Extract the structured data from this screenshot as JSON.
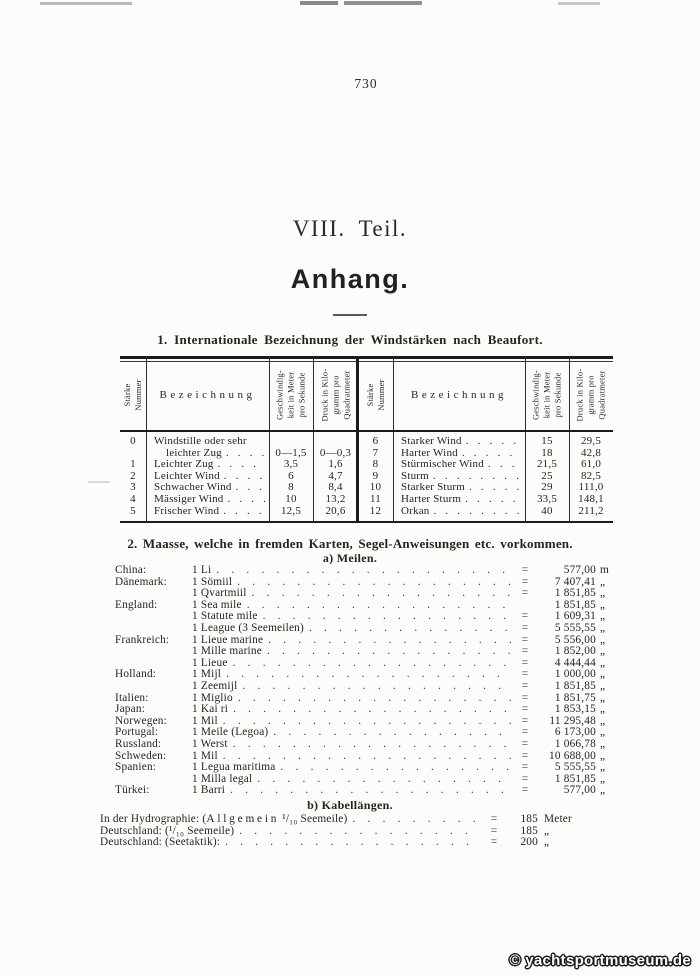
{
  "page": {
    "page_number": "730",
    "part_title": "VIII. Teil.",
    "chapter_title": "Anhang.",
    "watermark": "© yachtsportmuseum.de"
  },
  "wind_table": {
    "title": "1. Internationale Bezeichnung der Windstärken nach Beaufort.",
    "headers": {
      "staerke": "Stärke\nNummer",
      "bezeichnung": "Bezeichnung",
      "geschwindigkeit": "Geschwindig-\nkeit in Meter\npro Sekunde",
      "druck": "Druck in Kilo-\ngramm pro\nQuadratmeter"
    },
    "left_rows": [
      {
        "num": "0",
        "bez": "Windstille oder sehr",
        "dots": false,
        "indent": false,
        "geschw": "",
        "druck": ""
      },
      {
        "num": "",
        "bez": "leichter Zug",
        "dots": true,
        "indent": true,
        "geschw": "0—1,5",
        "druck": "0—0,3"
      },
      {
        "num": "1",
        "bez": "Leichter Zug",
        "dots": true,
        "indent": false,
        "geschw": "3,5",
        "druck": "1,6"
      },
      {
        "num": "2",
        "bez": "Leichter Wind",
        "dots": true,
        "indent": false,
        "geschw": "6",
        "druck": "4,7"
      },
      {
        "num": "3",
        "bez": "Schwacher Wind",
        "dots": true,
        "indent": false,
        "geschw": "8",
        "druck": "8,4"
      },
      {
        "num": "4",
        "bez": "Mässiger Wind",
        "dots": true,
        "indent": false,
        "geschw": "10",
        "druck": "13,2"
      },
      {
        "num": "5",
        "bez": "Frischer Wind",
        "dots": true,
        "indent": false,
        "geschw": "12,5",
        "druck": "20,6"
      }
    ],
    "right_rows": [
      {
        "num": "6",
        "bez": "Starker Wind",
        "geschw": "15",
        "druck": "29,5"
      },
      {
        "num": "7",
        "bez": "Harter Wind",
        "geschw": "18",
        "druck": "42,8"
      },
      {
        "num": "8",
        "bez": "Stürmischer Wind",
        "geschw": "21,5",
        "druck": "61,0"
      },
      {
        "num": "9",
        "bez": "Sturm",
        "geschw": "25",
        "druck": "82,5"
      },
      {
        "num": "10",
        "bez": "Starker Sturm",
        "geschw": "29",
        "druck": "111,0"
      },
      {
        "num": "11",
        "bez": "Harter Sturm",
        "geschw": "33,5",
        "druck": "148,1"
      },
      {
        "num": "12",
        "bez": "Orkan",
        "geschw": "40",
        "druck": "211,2"
      }
    ]
  },
  "measures": {
    "title": "2. Maasse, welche in fremden Karten, Segel-Anweisungen etc. vorkommen.",
    "miles": {
      "title": "a) Meilen.",
      "rows": [
        {
          "country": "China:",
          "measure": "1 Li",
          "eq": "=",
          "value": "577,00",
          "unit": "m"
        },
        {
          "country": "Dänemark:",
          "measure": "1 Sömiil",
          "eq": "=",
          "value": "7 407,41",
          "unit": "„"
        },
        {
          "country": "",
          "measure": "1 Qvartmiil",
          "eq": "=",
          "value": "1 851,85",
          "unit": "„"
        },
        {
          "country": "England:",
          "measure": "1 Sea mile",
          "eq": "",
          "value": "1 851,85",
          "unit": "„"
        },
        {
          "country": "",
          "measure": "1 Statute mile",
          "eq": "=",
          "value": "1 609,31",
          "unit": "„"
        },
        {
          "country": "",
          "measure": "1 League (3 Seemeilen)",
          "eq": "=",
          "value": "5 555,55",
          "unit": "„"
        },
        {
          "country": "Frankreich:",
          "measure": "1 Lieue marine",
          "eq": "=",
          "value": "5 556,00",
          "unit": "„"
        },
        {
          "country": "",
          "measure": "1 Mille marine",
          "eq": "=",
          "value": "1 852,00",
          "unit": "„"
        },
        {
          "country": "",
          "measure": "1 Lieue",
          "eq": "=",
          "value": "4 444,44",
          "unit": "„"
        },
        {
          "country": "Holland:",
          "measure": "1 Mijl",
          "eq": "=",
          "value": "1 000,00",
          "unit": "„"
        },
        {
          "country": "",
          "measure": "1 Zeemijl",
          "eq": "=",
          "value": "1 851,85",
          "unit": "„"
        },
        {
          "country": "Italien:",
          "measure": "1 Miglio",
          "eq": "=",
          "value": "1 851,75",
          "unit": "„"
        },
        {
          "country": "Japan:",
          "measure": "1 Kai ri",
          "eq": "=",
          "value": "1 853,15",
          "unit": "„"
        },
        {
          "country": "Norwegen:",
          "measure": "1 Mil",
          "eq": "=",
          "value": "11 295,48",
          "unit": "„"
        },
        {
          "country": "Portugal:",
          "measure": "1 Meile (Legoa)",
          "eq": "=",
          "value": "6 173,00",
          "unit": "„"
        },
        {
          "country": "Russland:",
          "measure": "1 Werst",
          "eq": "=",
          "value": "1 066,78",
          "unit": "„"
        },
        {
          "country": "Schweden:",
          "measure": "1 Mil",
          "eq": "=",
          "value": "10 688,00",
          "unit": "„"
        },
        {
          "country": "Spanien:",
          "measure": "1 Legua maritima",
          "eq": "=",
          "value": "5 555,55",
          "unit": "„"
        },
        {
          "country": "",
          "measure": "1 Milla legal",
          "eq": "=",
          "value": "1 851,85",
          "unit": "„"
        },
        {
          "country": "Türkei:",
          "measure": "1 Barri",
          "eq": "=",
          "value": "577,00",
          "unit": "„"
        }
      ]
    },
    "cables": {
      "title": "b) Kabellängen.",
      "rows": [
        {
          "label_pre": "In der Hydrographie: (",
          "label_spaced": "Allgemein",
          "label_post": " ¹/₁₀ Seemeile)",
          "eq": "=",
          "value": "185",
          "unit": "Meter"
        },
        {
          "label_pre": "Deutschland: (¹/₁₀ Seemeile)",
          "label_spaced": "",
          "label_post": "",
          "eq": "=",
          "value": "185",
          "unit": "„"
        },
        {
          "label_pre": "Deutschland: (Seetaktik):",
          "label_spaced": "",
          "label_post": "",
          "eq": "=",
          "value": "200",
          "unit": "„"
        }
      ]
    }
  }
}
